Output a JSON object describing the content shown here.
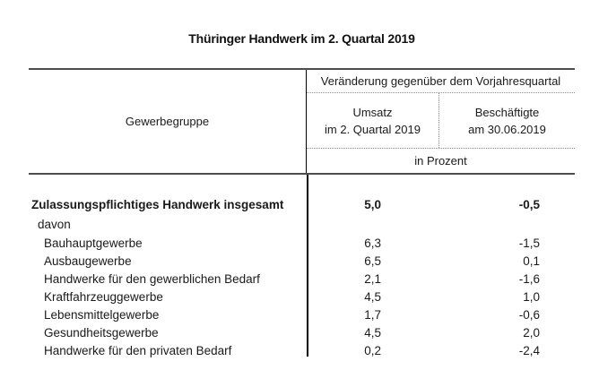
{
  "title": "Thüringer Handwerk im 2. Quartal 2019",
  "colors": {
    "thick_rule": "#4d4d4d",
    "thin_rule": "#8c8c8c",
    "divider": "#000000",
    "text": "#1a1a1a"
  },
  "header": {
    "group_col": "Gewerbegruppe",
    "span": "Veränderung gegenüber dem Vorjahresquartal",
    "umsatz_line1": "Umsatz",
    "umsatz_line2": "im 2. Quartal 2019",
    "besch_line1": "Beschäftigte",
    "besch_line2": "am 30.06.2019",
    "unit": "in Prozent"
  },
  "chart_data": {
    "type": "table",
    "title": "Thüringer Handwerk im 2. Quartal 2019",
    "columns": [
      "Gewerbegruppe",
      "Umsatz im 2. Quartal 2019",
      "Beschäftigte am 30.06.2019"
    ],
    "span_header": "Veränderung gegenüber dem Vorjahresquartal",
    "unit": "in Prozent",
    "total": {
      "label": "Zulassungspflichtiges Handwerk insgesamt",
      "umsatz": "5,0",
      "beschaeftigte": "-0,5"
    },
    "davon_label": "davon",
    "rows": [
      {
        "label": "Bauhauptgewerbe",
        "umsatz": "6,3",
        "beschaeftigte": "-1,5"
      },
      {
        "label": "Ausbaugewerbe",
        "umsatz": "6,5",
        "beschaeftigte": "0,1"
      },
      {
        "label": "Handwerke für den gewerblichen Bedarf",
        "umsatz": "2,1",
        "beschaeftigte": "-1,6"
      },
      {
        "label": "Kraftfahrzeuggewerbe",
        "umsatz": "4,5",
        "beschaeftigte": "1,0"
      },
      {
        "label": "Lebensmittelgewerbe",
        "umsatz": "1,7",
        "beschaeftigte": "-0,6"
      },
      {
        "label": "Gesundheitsgewerbe",
        "umsatz": "4,5",
        "beschaeftigte": "2,0"
      },
      {
        "label": "Handwerke für den privaten Bedarf",
        "umsatz": "0,2",
        "beschaeftigte": "-2,4"
      }
    ]
  }
}
